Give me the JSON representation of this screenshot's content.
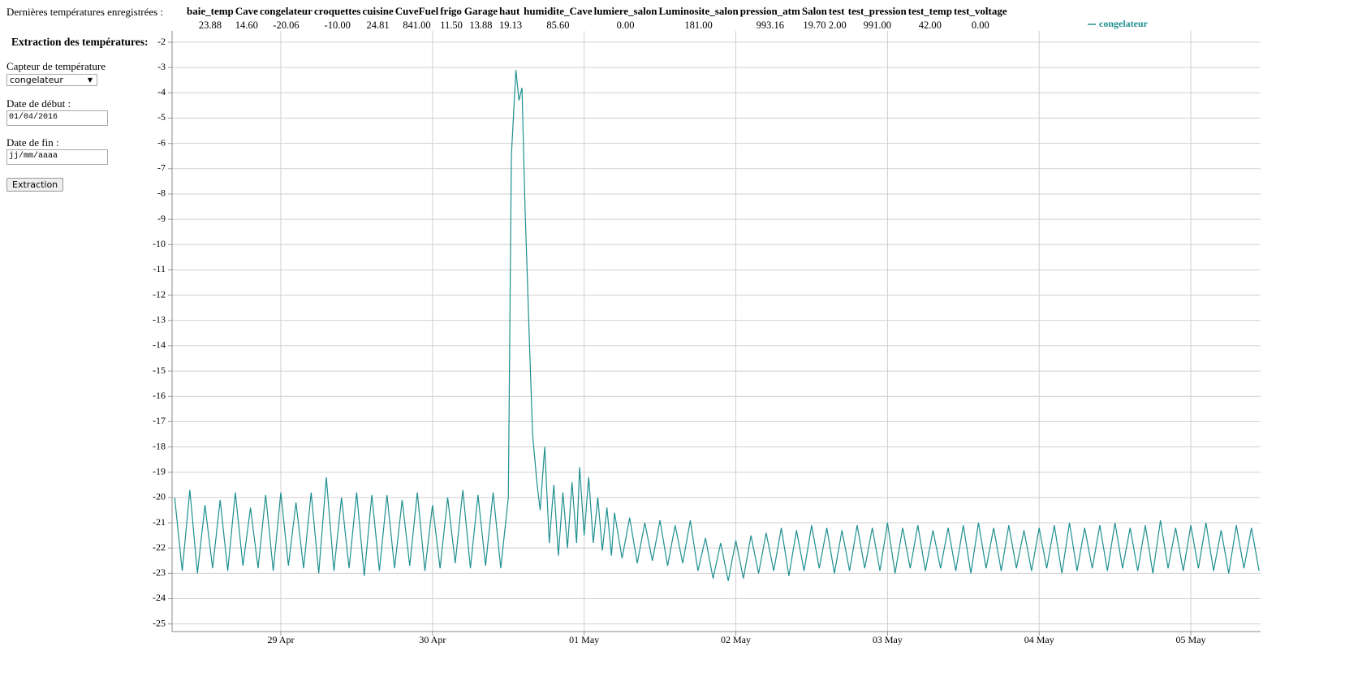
{
  "header": {
    "label": "Dernières températures enregistrées :",
    "sensors": [
      "baie_temp",
      "Cave",
      "congelateur",
      "croquettes",
      "cuisine",
      "CuveFuel",
      "frigo",
      "Garage",
      "haut",
      "humidite_Cave",
      "lumiere_salon",
      "Luminosite_salon",
      "pression_atm",
      "Salon",
      "test",
      "test_pression",
      "test_temp",
      "test_voltage"
    ],
    "values": [
      "23.88",
      "14.60",
      "-20.06",
      "-10.00",
      "24.81",
      "841.00",
      "11.50",
      "13.88",
      "19.13",
      "85.60",
      "0.00",
      "181.00",
      "993.16",
      "19.70",
      "2.00",
      "991.00",
      "42.00",
      "0.00"
    ]
  },
  "form": {
    "title": "Extraction des températures:",
    "sensor_label": "Capteur de température",
    "sensor_selected": "congelateur",
    "start_label": "Date de début :",
    "start_value": "01/04/2016",
    "end_label": "Date de fin :",
    "end_placeholder": "jj/mm/aaaa",
    "button": "Extraction"
  },
  "chart_data": {
    "type": "line",
    "x": [
      -0.7,
      -0.65,
      -0.6,
      -0.55,
      -0.5,
      -0.45,
      -0.4,
      -0.35,
      -0.3,
      -0.25,
      -0.2,
      -0.15,
      -0.1,
      -0.05,
      0,
      0.05,
      0.1,
      0.15,
      0.2,
      0.25,
      0.3,
      0.35,
      0.4,
      0.45,
      0.5,
      0.55,
      0.6,
      0.65,
      0.7,
      0.75,
      0.8,
      0.85,
      0.9,
      0.95,
      1,
      1.05,
      1.1,
      1.15,
      1.2,
      1.25,
      1.3,
      1.35,
      1.4,
      1.45,
      1.5,
      1.52,
      1.55,
      1.57,
      1.59,
      1.61,
      1.64,
      1.66,
      1.69,
      1.71,
      1.74,
      1.77,
      1.8,
      1.83,
      1.86,
      1.89,
      1.92,
      1.95,
      1.97,
      2,
      2.03,
      2.06,
      2.09,
      2.12,
      2.15,
      2.18,
      2.2,
      2.25,
      2.3,
      2.35,
      2.4,
      2.45,
      2.5,
      2.55,
      2.6,
      2.65,
      2.7,
      2.75,
      2.8,
      2.85,
      2.9,
      2.95,
      3,
      3.05,
      3.1,
      3.15,
      3.2,
      3.25,
      3.3,
      3.35,
      3.4,
      3.45,
      3.5,
      3.55,
      3.6,
      3.65,
      3.7,
      3.75,
      3.8,
      3.85,
      3.9,
      3.95,
      4,
      4.05,
      4.1,
      4.15,
      4.2,
      4.25,
      4.3,
      4.35,
      4.4,
      4.45,
      4.5,
      4.55,
      4.6,
      4.65,
      4.7,
      4.75,
      4.8,
      4.85,
      4.9,
      4.95,
      5,
      5.05,
      5.1,
      5.15,
      5.2,
      5.25,
      5.3,
      5.35,
      5.4,
      5.45,
      5.5,
      5.55,
      5.6,
      5.65,
      5.7,
      5.75,
      5.8,
      5.85,
      5.9,
      5.95,
      6,
      6.05,
      6.1,
      6.15,
      6.2,
      6.25,
      6.3,
      6.35,
      6.4,
      6.45
    ],
    "series": [
      {
        "name": "congelateur",
        "color": "#1f8f8f",
        "values": [
          -20,
          -22.9,
          -19.7,
          -23.0,
          -20.3,
          -22.8,
          -20.1,
          -22.9,
          -19.8,
          -22.7,
          -20.4,
          -22.8,
          -19.9,
          -22.9,
          -19.8,
          -22.7,
          -20.2,
          -22.8,
          -19.8,
          -23.0,
          -19.2,
          -22.9,
          -20.0,
          -22.8,
          -19.8,
          -23.1,
          -19.9,
          -22.9,
          -19.9,
          -22.8,
          -20.1,
          -22.7,
          -19.8,
          -22.9,
          -20.3,
          -22.8,
          -20.0,
          -22.6,
          -19.7,
          -22.8,
          -19.9,
          -22.7,
          -19.8,
          -22.8,
          -20.0,
          -6.5,
          -3.1,
          -4.3,
          -3.8,
          -8.5,
          -14,
          -17.5,
          -19.5,
          -20.5,
          -18,
          -21.8,
          -19.5,
          -22.3,
          -19.8,
          -22,
          -19.4,
          -21.8,
          -18.8,
          -21.5,
          -19.2,
          -21.8,
          -20,
          -22.1,
          -20.4,
          -22.3,
          -20.6,
          -22.4,
          -20.8,
          -22.6,
          -21.0,
          -22.5,
          -20.9,
          -22.7,
          -21.1,
          -22.6,
          -20.9,
          -22.9,
          -21.6,
          -23.2,
          -21.8,
          -23.3,
          -21.7,
          -23.2,
          -21.5,
          -23.0,
          -21.4,
          -22.9,
          -21.2,
          -23.1,
          -21.3,
          -22.9,
          -21.1,
          -22.8,
          -21.2,
          -23.0,
          -21.3,
          -22.9,
          -21.1,
          -22.8,
          -21.2,
          -22.9,
          -21.0,
          -23.0,
          -21.2,
          -22.8,
          -21.1,
          -22.9,
          -21.3,
          -22.8,
          -21.2,
          -22.9,
          -21.1,
          -23.0,
          -21.0,
          -22.8,
          -21.2,
          -22.9,
          -21.1,
          -22.8,
          -21.3,
          -22.9,
          -21.2,
          -22.8,
          -21.1,
          -23.0,
          -21.0,
          -22.9,
          -21.2,
          -22.8,
          -21.1,
          -22.9,
          -21.0,
          -22.8,
          -21.2,
          -22.9,
          -21.1,
          -23.0,
          -20.9,
          -22.8,
          -21.2,
          -22.9,
          -21.1,
          -22.8,
          -21.0,
          -22.9,
          -21.3,
          -23.0,
          -21.1,
          -22.8,
          -21.2,
          -22.9
        ]
      }
    ],
    "xlim": [
      -0.717,
      6.46
    ],
    "xticks": [
      {
        "value": 0,
        "label": "29 Apr"
      },
      {
        "value": 1,
        "label": "30 Apr"
      },
      {
        "value": 2,
        "label": "01 May"
      },
      {
        "value": 3,
        "label": "02 May"
      },
      {
        "value": 4,
        "label": "03 May"
      },
      {
        "value": 5,
        "label": "04 May"
      },
      {
        "value": 6,
        "label": "05 May"
      }
    ],
    "ylim": [
      -25.3,
      -1.55
    ],
    "yticks": [
      -2,
      -3,
      -4,
      -5,
      -6,
      -7,
      -8,
      -9,
      -10,
      -11,
      -12,
      -13,
      -14,
      -15,
      -16,
      -17,
      -18,
      -19,
      -20,
      -21,
      -22,
      -23,
      -24,
      -25
    ],
    "grid": true,
    "legend": "top-right"
  }
}
